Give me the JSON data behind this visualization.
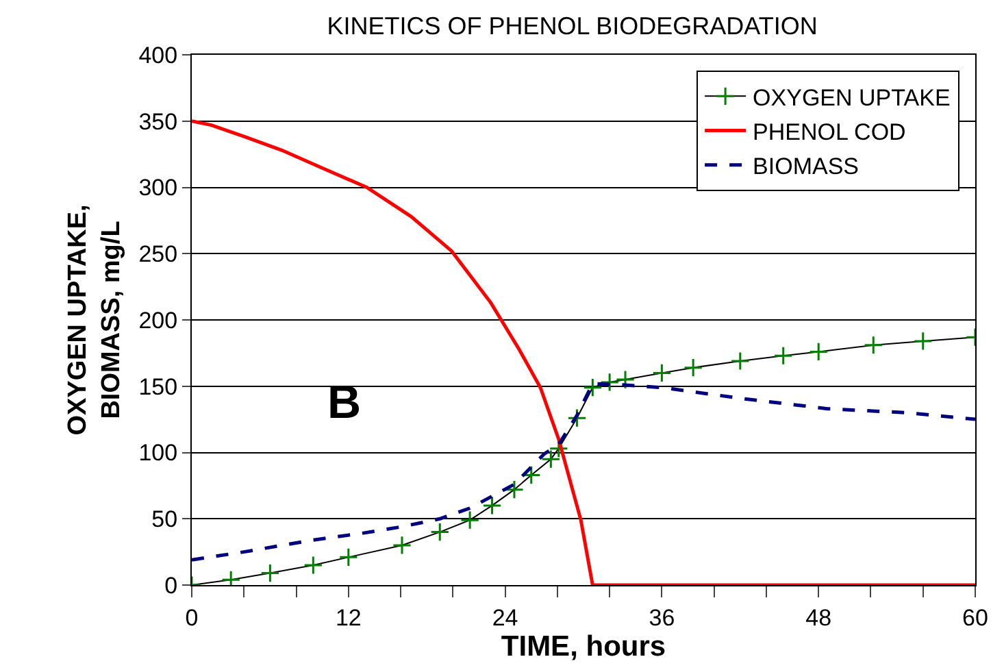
{
  "chart_data": {
    "type": "line",
    "title": "KINETICS OF PHENOL BIODEGRADATION",
    "xlabel": "TIME, hours",
    "ylabel": "OXYGEN UPTAKE,\nBIOMASS, mg/L",
    "annotations": [
      "B"
    ],
    "xlim": [
      0,
      60
    ],
    "ylim": [
      0,
      400
    ],
    "xticks": [
      0,
      {
        "value": 4,
        "label": null
      },
      {
        "value": 8,
        "label": null
      },
      12,
      {
        "value": 16,
        "label": null
      },
      {
        "value": 20,
        "label": null
      },
      24,
      {
        "value": 28,
        "label": null
      },
      {
        "value": 32,
        "label": null
      },
      36,
      {
        "value": 40,
        "label": null
      },
      {
        "value": 44,
        "label": null
      },
      48,
      {
        "value": 52,
        "label": null
      },
      {
        "value": 56,
        "label": null
      },
      60
    ],
    "yticks": [
      0,
      50,
      100,
      150,
      200,
      250,
      300,
      350,
      400
    ],
    "grid": "y",
    "legend": "top right",
    "series": [
      {
        "name": "OXYGEN UPTAKE",
        "color": "#008000",
        "marker": "cross",
        "x": [
          0,
          3,
          6,
          9.3,
          12,
          16.1,
          19,
          21.3,
          23,
          24.7,
          26,
          27.5,
          28.1,
          29.5,
          30.7,
          32,
          33.2,
          36,
          38.4,
          42,
          45.3,
          48,
          52.2,
          56,
          60
        ],
        "values": [
          0,
          4,
          9,
          15,
          21,
          30,
          40,
          49,
          60,
          72,
          83,
          95,
          103,
          126,
          149,
          153,
          155,
          160,
          164,
          169,
          173,
          176,
          181,
          184,
          187
        ]
      },
      {
        "name": "PHENOL COD",
        "color": "#ff0000",
        "line_style": "solid",
        "x": [
          0,
          1.5,
          4.1,
          6.9,
          9.9,
          13.4,
          16.8,
          19.9,
          22.9,
          25,
          26.7,
          28.1,
          29.8,
          30.7,
          60
        ],
        "values": [
          350,
          347,
          338,
          328,
          315,
          300,
          278,
          252,
          213,
          179,
          149,
          110,
          49,
          0,
          0
        ]
      },
      {
        "name": "BIOMASS",
        "color": "#000080",
        "line_style": "dashed",
        "x": [
          0,
          4,
          9.3,
          13,
          16.1,
          19,
          21.3,
          24.7,
          27,
          28.1,
          29.5,
          30.7,
          33,
          36,
          41.9,
          48.7,
          54.8,
          60
        ],
        "values": [
          19,
          25,
          34,
          39,
          44,
          50,
          58,
          76,
          99,
          106,
          128,
          152,
          151,
          149,
          141,
          133,
          130,
          125
        ]
      }
    ]
  }
}
